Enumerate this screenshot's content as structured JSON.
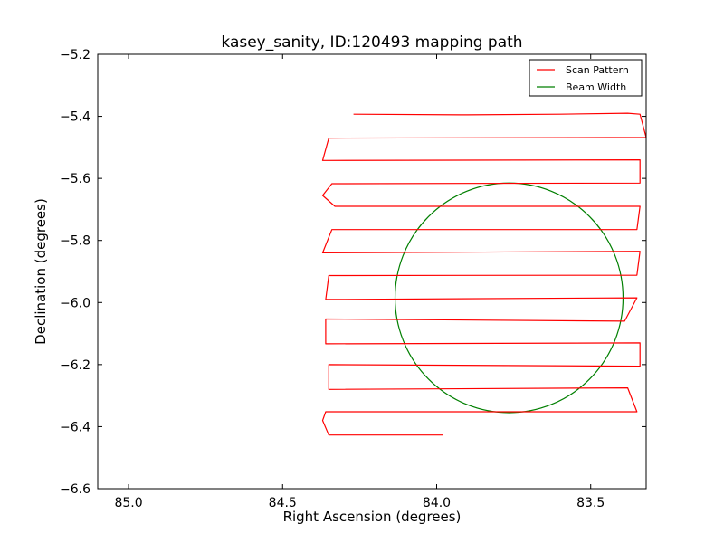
{
  "chart_data": {
    "type": "line",
    "title": "kasey_sanity, ID:120493 mapping path",
    "xlabel": "Right Ascension (degrees)",
    "ylabel": "Declination (degrees)",
    "xlim": [
      85.1,
      83.32
    ],
    "ylim": [
      -6.6,
      -5.2
    ],
    "x_inverted": true,
    "xticks": [
      85.0,
      84.5,
      84.0,
      83.5
    ],
    "xtick_labels": [
      "85.0",
      "84.5",
      "84.0",
      "83.5"
    ],
    "yticks": [
      -6.6,
      -6.4,
      -6.2,
      -6.0,
      -5.8,
      -5.6,
      -5.4,
      -5.2
    ],
    "ytick_labels": [
      "−6.6",
      "−6.4",
      "−6.2",
      "−6.0",
      "−5.8",
      "−5.6",
      "−5.4",
      "−5.2"
    ],
    "legend_position": "top-right",
    "series": [
      {
        "name": "Scan Pattern",
        "color": "#ff0000",
        "points": [
          [
            84.27,
            -5.393
          ],
          [
            83.9,
            -5.395
          ],
          [
            83.6,
            -5.393
          ],
          [
            83.38,
            -5.39
          ],
          [
            83.34,
            -5.393
          ],
          [
            83.32,
            -5.468
          ],
          [
            84.35,
            -5.47
          ],
          [
            84.37,
            -5.542
          ],
          [
            83.34,
            -5.54
          ],
          [
            83.34,
            -5.615
          ],
          [
            84.34,
            -5.617
          ],
          [
            84.37,
            -5.655
          ],
          [
            84.33,
            -5.69
          ],
          [
            83.34,
            -5.69
          ],
          [
            83.35,
            -5.765
          ],
          [
            84.34,
            -5.765
          ],
          [
            84.37,
            -5.84
          ],
          [
            83.34,
            -5.835
          ],
          [
            83.35,
            -5.912
          ],
          [
            84.35,
            -5.913
          ],
          [
            84.36,
            -5.99
          ],
          [
            83.35,
            -5.985
          ],
          [
            83.39,
            -6.06
          ],
          [
            84.36,
            -6.053
          ],
          [
            84.36,
            -6.133
          ],
          [
            83.34,
            -6.13
          ],
          [
            83.34,
            -6.205
          ],
          [
            84.35,
            -6.2
          ],
          [
            84.35,
            -6.28
          ],
          [
            83.38,
            -6.275
          ],
          [
            83.35,
            -6.352
          ],
          [
            84.36,
            -6.352
          ],
          [
            84.37,
            -6.38
          ],
          [
            84.35,
            -6.427
          ],
          [
            83.98,
            -6.427
          ]
        ]
      },
      {
        "name": "Beam Width",
        "color": "#007f00",
        "center": [
          83.765,
          -5.985
        ],
        "radius": 0.37
      }
    ]
  }
}
